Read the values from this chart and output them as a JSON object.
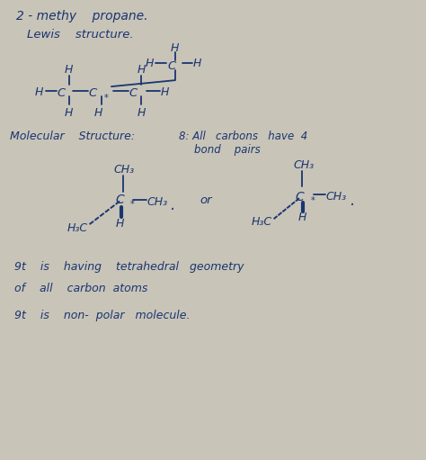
{
  "bg_color": "#c8c4b8",
  "paper_color": "#e8e6df",
  "text_color": "#1a3570",
  "title": "2 - methy    propane.",
  "lewis_label": "Lewis    structure.",
  "mol_label1": "Molecular    Structure:",
  "mol_label2": "8: All   carbons   have  4",
  "mol_label3": "bond    pairs",
  "geo1": "9t    is    having    tetrahedral   geometry",
  "geo2": "of    all    carbon  atoms",
  "nonpolar": "9t    is    non-  polar   molecule."
}
